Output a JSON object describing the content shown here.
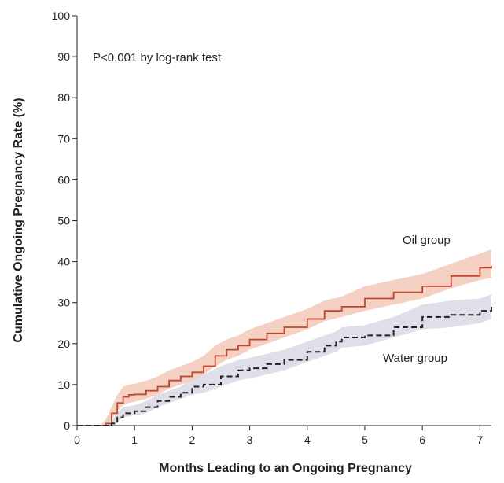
{
  "chart_data": {
    "type": "line",
    "annotation": "P<0.001 by log-rank test",
    "xlabel": "Months Leading to an Ongoing Pregnancy",
    "ylabel": "Cumulative Ongoing Pregnancy Rate (%)",
    "xlim": [
      0,
      7.2
    ],
    "ylim": [
      0,
      100
    ],
    "xticks": [
      "0",
      "1",
      "2",
      "3",
      "4",
      "5",
      "6",
      "7"
    ],
    "yticks": [
      "0",
      "10",
      "20",
      "30",
      "40",
      "50",
      "60",
      "70",
      "80",
      "90",
      "100"
    ],
    "grid": false,
    "series": [
      {
        "name": "Oil group",
        "color": "#c0462e",
        "band_color": "#f2c9b8",
        "style": "solid",
        "x": [
          0,
          0.4,
          0.5,
          0.6,
          0.7,
          0.8,
          0.9,
          1.0,
          1.2,
          1.4,
          1.6,
          1.8,
          2.0,
          2.2,
          2.4,
          2.6,
          2.8,
          3.0,
          3.3,
          3.6,
          4.0,
          4.3,
          4.6,
          5.0,
          5.5,
          6.0,
          6.5,
          7.0,
          7.2
        ],
        "values": [
          0,
          0,
          0.5,
          3,
          5.5,
          7,
          7.5,
          7.6,
          8.5,
          9.5,
          11,
          12,
          13,
          14.5,
          17,
          18.5,
          19.5,
          21,
          22.5,
          24,
          26,
          28,
          29,
          31,
          32.5,
          34,
          36.5,
          38.5,
          39
        ],
        "lower": [
          0,
          0,
          0,
          1.5,
          3.5,
          5,
          5.5,
          5.8,
          6.5,
          7.5,
          9,
          10,
          11,
          12.5,
          14.5,
          16,
          17,
          18.5,
          20,
          21.5,
          23.5,
          25.5,
          26.5,
          28,
          29.5,
          31,
          33.5,
          35.5,
          36
        ],
        "upper": [
          0,
          0,
          1.5,
          4.5,
          7.5,
          9.5,
          10,
          10.2,
          11,
          12,
          13.5,
          14.5,
          15.5,
          17,
          19.5,
          21,
          22,
          23.5,
          25,
          26.5,
          28.5,
          30.5,
          31.5,
          34,
          35.5,
          37,
          39.5,
          42,
          43
        ]
      },
      {
        "name": "Water group",
        "color": "#222222",
        "band_color": "#dadbe6",
        "style": "dashed",
        "x": [
          0,
          0.5,
          0.6,
          0.7,
          0.8,
          1.0,
          1.2,
          1.4,
          1.6,
          1.8,
          2.0,
          2.2,
          2.5,
          2.8,
          3.0,
          3.3,
          3.6,
          4.0,
          4.3,
          4.5,
          4.6,
          5.0,
          5.5,
          6.0,
          6.5,
          7.0,
          7.2
        ],
        "values": [
          0,
          0,
          0.5,
          2,
          3,
          3.5,
          4.5,
          6,
          7,
          8,
          9.5,
          10,
          12,
          13.5,
          14,
          15,
          16,
          18,
          19.5,
          20.5,
          21.5,
          22,
          24,
          26.5,
          27,
          28,
          29
        ],
        "lower": [
          0,
          0,
          0,
          1,
          2,
          2.5,
          3,
          4.5,
          5.5,
          6.5,
          7.5,
          8,
          9.5,
          11,
          11.5,
          12.5,
          13.5,
          15.5,
          17,
          18,
          19,
          19.5,
          21.5,
          23.5,
          24,
          25,
          26
        ],
        "upper": [
          0,
          0,
          1.2,
          3.2,
          4.5,
          5,
          6,
          7.5,
          8.5,
          9.5,
          11.5,
          12.5,
          14.5,
          16,
          16.5,
          17.5,
          18.5,
          20.5,
          22,
          23,
          24,
          24.5,
          26.5,
          29.5,
          30.5,
          31,
          32
        ]
      }
    ]
  }
}
